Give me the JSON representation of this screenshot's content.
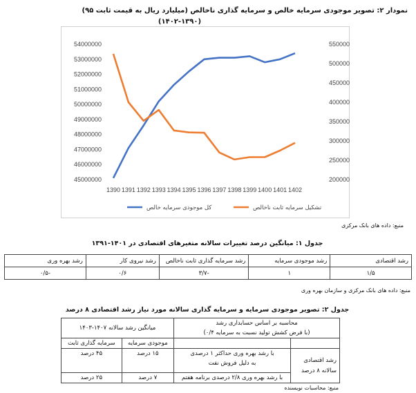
{
  "figure": {
    "title_line1": "نمودار ۲: تصویر موجودی سرمایه خالص و سرمایه گذاری ناخالص (میلیارد ریال به قیمت ثابت ۹۵)",
    "title_line2": "(۱۴۰۲-۱۳۹۰)",
    "source": "منبع: داده های بانک مرکزی"
  },
  "chart_data": {
    "type": "line",
    "x": [
      "1390",
      "1391",
      "1392",
      "1393",
      "1394",
      "1395",
      "1396",
      "1397",
      "1398",
      "1399",
      "1400",
      "1401",
      "1402"
    ],
    "series": [
      {
        "name": "کل موجودی سرمایه خالص",
        "axis": "left",
        "color": "#4472C4",
        "values": [
          45100000,
          47100000,
          48600000,
          50200000,
          51300000,
          52200000,
          53000000,
          53100000,
          53100000,
          53200000,
          52800000,
          53000000,
          53400000
        ]
      },
      {
        "name": "تشکیل سرمایه ثابت ناخالص",
        "axis": "right",
        "color": "#ED7D31",
        "values": [
          5250000,
          4000000,
          3520000,
          3800000,
          3270000,
          3220000,
          3210000,
          2700000,
          2520000,
          2580000,
          2580000,
          2750000,
          2950000
        ]
      }
    ],
    "left_axis": {
      "ylim": [
        45000000,
        54000000
      ],
      "ticks": [
        "54000000",
        "53000000",
        "52000000",
        "51000000",
        "50000000",
        "49000000",
        "48000000",
        "47000000",
        "46000000",
        "45000000"
      ]
    },
    "right_axis": {
      "ylim": [
        2000000,
        5500000
      ],
      "ticks": [
        "5500000",
        "5000000",
        "4500000",
        "4000000",
        "3500000",
        "3000000",
        "2500000",
        "2000000"
      ]
    },
    "legend_position": "bottom"
  },
  "table1": {
    "title": "جدول ۱: میانگین درصد تغییرات سالانه متغیرهای اقتصادی در ۱۴۰۱-۱۳۹۱",
    "headers": [
      "رشد اقتصادی",
      "رشد موجودی سرمایه",
      "رشد سرمایه گذاری ثابت ناخالص",
      "رشد نیروی کار",
      "رشد بهره وری"
    ],
    "values": [
      "۱/۵",
      "۱",
      "-۳/۷",
      "۰/۶",
      "-۰/۵"
    ],
    "source": "منبع: داده های بانک مرکزی و سازمان بهره وری"
  },
  "table2": {
    "title": "جدول ۲: تصویر موجودی سرمایه و سرمایه گذاری سالانه مورد نیاز رشد اقتصادی ۸ درصد",
    "header_calc_line1": "محاسبه بر اساس حسابداری رشد",
    "header_calc_line2": "(با فرض کشش تولید نسبت به سرمایه ۰/۴)",
    "header_avg": "میانگین رشد سالانه ۱۴۰۷-۱۴۰۳",
    "col_capital_stock": "موجودی سرمایه",
    "col_fixed_investment": "سرمایه گذاری ثابت",
    "row_group": "رشد اقتصادی سالانه ۸ درصد",
    "row1_desc_line1": "با رشد بهره وری حداکثر ۱ درصدی",
    "row1_desc_line2": "به دلیل فروش نفت",
    "row1_stock": "۱۵ درصد",
    "row1_invest": "۴۵ درصد",
    "row2_desc": "با رشد بهره وری ۲/۸ درصدی برنامه هفتم",
    "row2_stock": "۷ درصد",
    "row2_invest": "۲۵ درصد",
    "source": "منبع: محاسبات نویسنده"
  }
}
